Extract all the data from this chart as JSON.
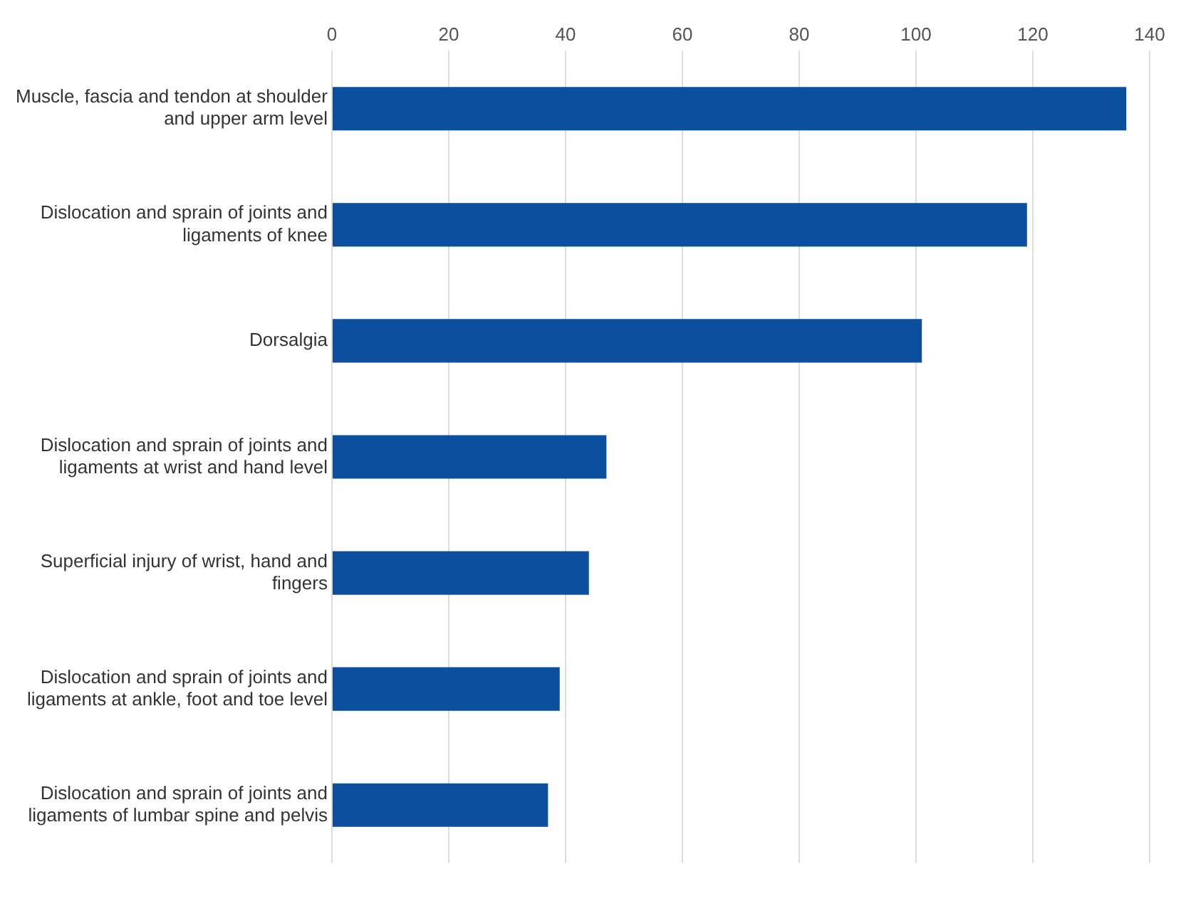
{
  "chart_data": {
    "type": "bar",
    "orientation": "horizontal",
    "categories": [
      "Muscle, fascia and tendon at shoulder and upper arm level",
      "Dislocation and sprain of joints and ligaments of knee",
      "Dorsalgia",
      "Dislocation and sprain of joints and ligaments at wrist and hand level",
      "Superficial injury of wrist, hand and fingers",
      "Dislocation and sprain of joints and ligaments at ankle, foot and toe level",
      "Dislocation and sprain of joints and ligaments of lumbar spine and pelvis"
    ],
    "values": [
      136,
      119,
      101,
      47,
      44,
      39,
      37
    ],
    "color": "#0b4f9e",
    "xlim": [
      0,
      140
    ],
    "xticks": [
      0,
      20,
      40,
      60,
      80,
      100,
      120,
      140
    ],
    "grid": "x",
    "legend": false
  }
}
